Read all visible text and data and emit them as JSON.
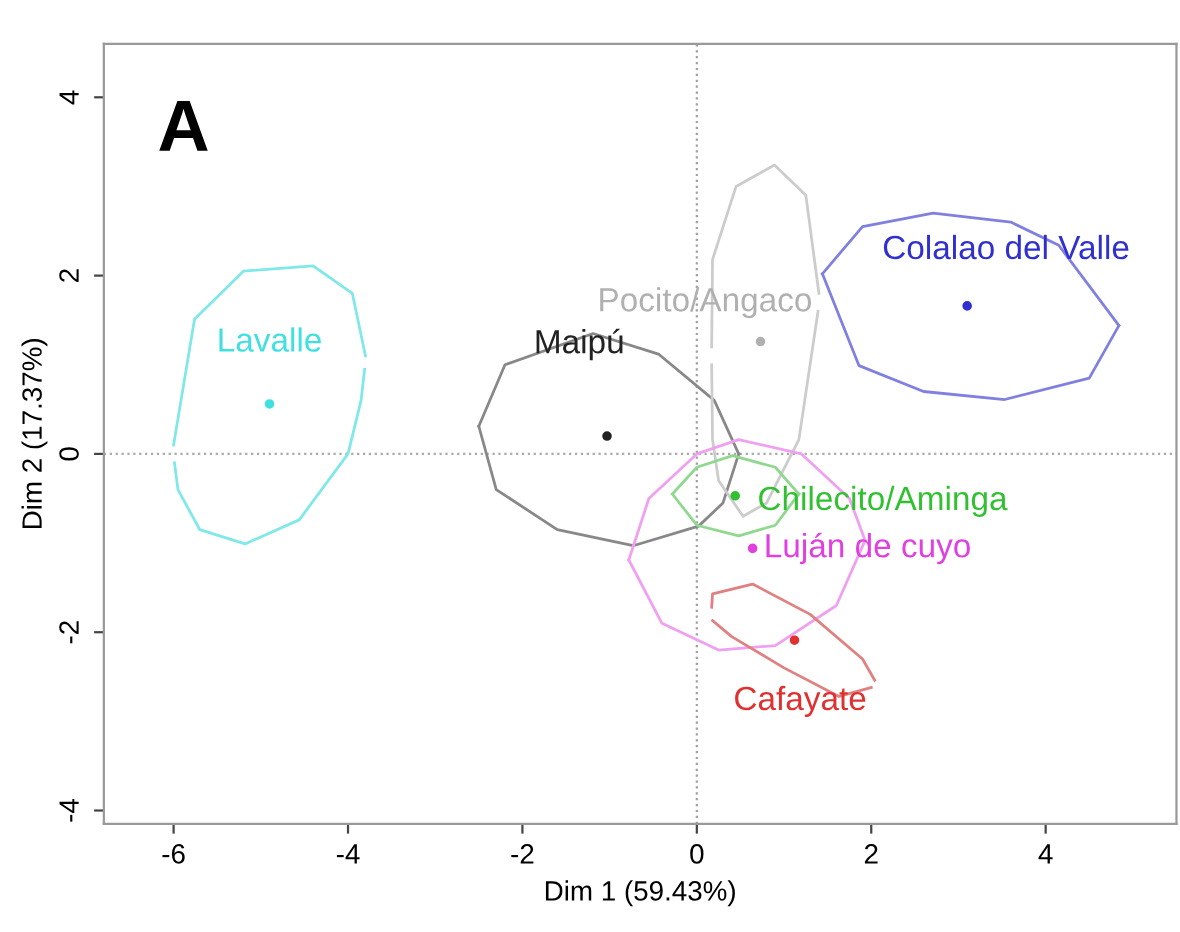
{
  "chart_data": {
    "type": "scatter",
    "xlabel": "Dim 1 (59.43%)",
    "ylabel": "Dim 2 (17.37%)",
    "xlim": [
      -6.8,
      5.5
    ],
    "ylim": [
      -4.15,
      4.6
    ],
    "xticks": [
      -6,
      -4,
      -2,
      0,
      2,
      4
    ],
    "yticks": [
      -4,
      -2,
      0,
      2,
      4
    ],
    "grid": false,
    "legend": false,
    "annotations": [
      "A"
    ],
    "ref_lines": [
      {
        "axis": "x",
        "value": 0,
        "color": "#a0a0a0",
        "line_style": "dotted"
      },
      {
        "axis": "y",
        "value": 0,
        "color": "#aaaaaa",
        "line_style": "dotted"
      }
    ],
    "series": [
      {
        "name": "Lavalle",
        "color": "#40e0e0",
        "marker": "circle",
        "x": [
          -4.9
        ],
        "values": [
          0.56
        ]
      },
      {
        "name": "Maipú",
        "color": "#222222",
        "marker": "circle",
        "x": [
          -1.03
        ],
        "values": [
          0.2
        ]
      },
      {
        "name": "Pocito/Angaco",
        "color": "#b0b0b0",
        "marker": "circle",
        "x": [
          0.73
        ],
        "values": [
          1.26
        ]
      },
      {
        "name": "Colalao del Valle",
        "color": "#3030d0",
        "marker": "circle",
        "x": [
          3.1
        ],
        "values": [
          1.66
        ]
      },
      {
        "name": "Chilecito/Aminga",
        "color": "#30c030",
        "marker": "circle",
        "x": [
          0.44
        ],
        "values": [
          -0.47
        ]
      },
      {
        "name": "Luján de cuyo",
        "color": "#e040e0",
        "marker": "circle",
        "x": [
          0.64
        ],
        "values": [
          -1.06
        ]
      },
      {
        "name": "Cafayate",
        "color": "#e03030",
        "marker": "circle",
        "x": [
          1.12
        ],
        "values": [
          -2.09
        ]
      },
      {
        "type": "line",
        "color": "#80e8e8",
        "marker": "none",
        "x": [
          -6.0,
          -5.76,
          -5.2,
          -4.4,
          -3.95,
          -3.8
        ],
        "values": [
          0.1,
          1.51,
          2.05,
          2.11,
          1.8,
          1.1
        ]
      },
      {
        "type": "line",
        "color": "#80e8e8",
        "marker": "none",
        "x": [
          -5.99,
          -5.95,
          -5.7,
          -5.18,
          -4.56,
          -4.0,
          -3.85,
          -3.81
        ],
        "values": [
          -0.1,
          -0.4,
          -0.85,
          -1.01,
          -0.74,
          0,
          0.6,
          0.95
        ]
      },
      {
        "type": "line",
        "color": "#888888",
        "marker": "none",
        "x": [
          -2.5,
          -2.2,
          -1.19,
          -0.44,
          0.2,
          0.48
        ],
        "values": [
          0.31,
          1.0,
          1.35,
          1.12,
          0.6,
          0
        ]
      },
      {
        "type": "line",
        "color": "#888888",
        "marker": "none",
        "x": [
          -2.5,
          -2.3,
          -1.6,
          -0.73,
          0.02,
          0.3,
          0.48
        ],
        "values": [
          0.31,
          -0.4,
          -0.85,
          -1.03,
          -0.81,
          -0.55,
          0
        ]
      },
      {
        "type": "line",
        "color": "#cccccc",
        "marker": "none",
        "x": [
          0.17,
          0.18,
          0.45,
          0.89,
          1.25,
          1.4
        ],
        "values": [
          1.2,
          2.18,
          3.0,
          3.24,
          2.9,
          1.8
        ]
      },
      {
        "type": "line",
        "color": "#cccccc",
        "marker": "none",
        "x": [
          0.17,
          0.18,
          0.25,
          0.53,
          0.8,
          1.17,
          1.39
        ],
        "values": [
          1.0,
          0.16,
          -0.3,
          -0.7,
          -0.55,
          0.16,
          1.6
        ]
      },
      {
        "type": "line",
        "color": "#8080e0",
        "marker": "none",
        "x": [
          1.44,
          1.9,
          2.71,
          3.6,
          4.15,
          4.84
        ],
        "values": [
          2.02,
          2.55,
          2.7,
          2.6,
          2.34,
          1.44
        ]
      },
      {
        "type": "line",
        "color": "#8080e0",
        "marker": "none",
        "x": [
          1.44,
          1.86,
          2.6,
          3.53,
          4.5,
          4.84
        ],
        "values": [
          2.02,
          0.99,
          0.7,
          0.61,
          0.85,
          1.44
        ]
      },
      {
        "type": "line",
        "color": "#90d890",
        "marker": "none",
        "x": [
          -0.28,
          0.0,
          0.41,
          0.9,
          1.17
        ],
        "values": [
          -0.45,
          -0.15,
          -0.02,
          -0.15,
          -0.45
        ]
      },
      {
        "type": "line",
        "color": "#90d890",
        "marker": "none",
        "x": [
          -0.28,
          0.0,
          0.48,
          0.9,
          1.17
        ],
        "values": [
          -0.45,
          -0.8,
          -0.92,
          -0.8,
          -0.45
        ]
      },
      {
        "type": "line",
        "color": "#f0a0f0",
        "marker": "none",
        "x": [
          -0.78,
          -0.55,
          0.0,
          0.48,
          1.2,
          1.75,
          1.93
        ],
        "values": [
          -1.19,
          -0.5,
          0.0,
          0.16,
          0.0,
          -0.5,
          -0.97
        ]
      },
      {
        "type": "line",
        "color": "#f0a0f0",
        "marker": "none",
        "x": [
          -0.78,
          -0.4,
          0.25,
          0.9,
          1.6,
          1.93
        ],
        "values": [
          -1.19,
          -1.9,
          -2.2,
          -2.15,
          -1.7,
          -0.97
        ]
      },
      {
        "type": "line",
        "color": "#e08080",
        "marker": "none",
        "x": [
          0.17,
          0.18,
          0.64,
          1.3,
          1.9,
          2.04
        ],
        "values": [
          -1.72,
          -1.57,
          -1.46,
          -1.8,
          -2.3,
          -2.54
        ]
      },
      {
        "type": "line",
        "color": "#e08080",
        "marker": "none",
        "x": [
          0.18,
          0.4,
          1.0,
          1.63,
          2.0
        ],
        "values": [
          -1.87,
          -2.05,
          -2.4,
          -2.72,
          -2.62
        ]
      }
    ]
  }
}
